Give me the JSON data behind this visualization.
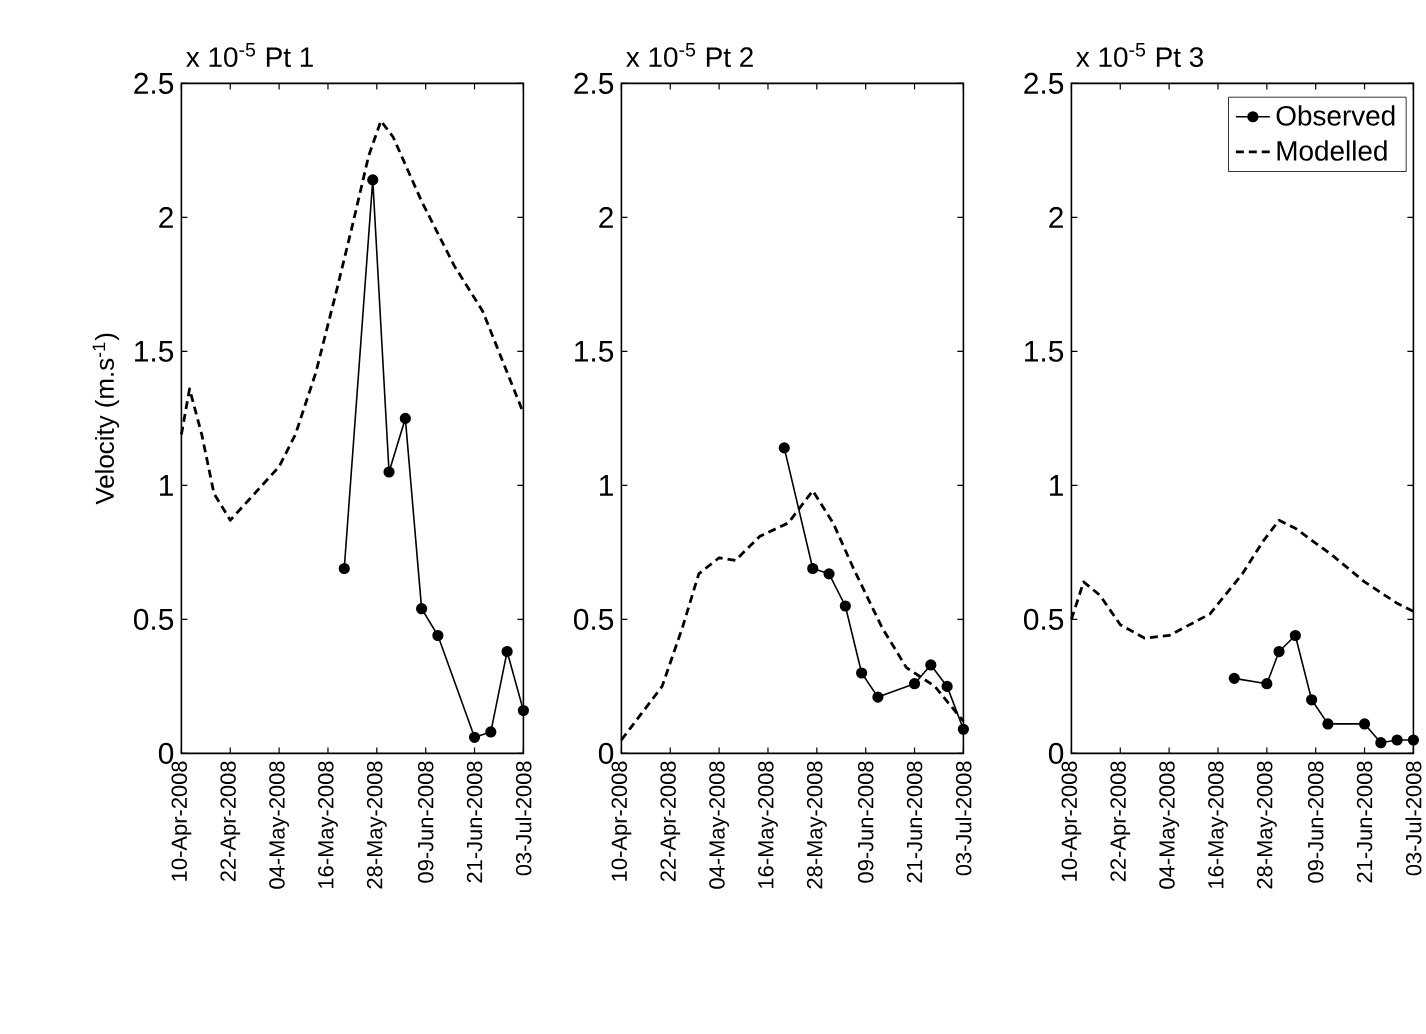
{
  "chart_data": [
    {
      "type": "line",
      "title": "x 10$^{-5}$ Pt 1",
      "ylabel": "Velocity (m.s$^{-1}$)",
      "xlim": [
        "2008-04-10",
        "2008-07-03"
      ],
      "ylim": [
        0,
        2.5
      ],
      "yticks": [
        0,
        0.5,
        1,
        1.5,
        2,
        2.5
      ],
      "xticks": [
        {
          "value": "2008-04-10",
          "label": "10-Apr-2008"
        },
        {
          "value": "2008-04-22",
          "label": "22-Apr-2008"
        },
        {
          "value": "2008-05-04",
          "label": "04-May-2008"
        },
        {
          "value": "2008-05-16",
          "label": "16-May-2008"
        },
        {
          "value": "2008-05-28",
          "label": "28-May-2008"
        },
        {
          "value": "2008-06-09",
          "label": "09-Jun-2008"
        },
        {
          "value": "2008-06-21",
          "label": "21-Jun-2008"
        },
        {
          "value": "2008-07-03",
          "label": "03-Jul-2008"
        }
      ],
      "legend": false,
      "series": [
        {
          "color": "#000000",
          "marker": "circle",
          "line_style": "solid",
          "x": [
            "2008-05-20",
            "2008-05-27",
            "2008-05-31",
            "2008-06-04",
            "2008-06-08",
            "2008-06-12",
            "2008-06-21",
            "2008-06-25",
            "2008-06-29",
            "2008-07-03"
          ],
          "values": [
            0.69,
            2.14,
            1.05,
            1.25,
            0.54,
            0.44,
            0.06,
            0.08,
            0.38,
            0.16
          ]
        },
        {
          "color": "#000000",
          "marker": "none",
          "line_style": "dashed",
          "x": [
            "2008-04-10",
            "2008-04-12",
            "2008-04-15",
            "2008-04-18",
            "2008-04-22",
            "2008-04-28",
            "2008-05-04",
            "2008-05-08",
            "2008-05-13",
            "2008-05-18",
            "2008-05-22",
            "2008-05-26",
            "2008-05-29",
            "2008-06-01",
            "2008-06-08",
            "2008-06-16",
            "2008-06-23",
            "2008-07-03"
          ],
          "values": [
            1.19,
            1.36,
            1.19,
            0.97,
            0.87,
            0.97,
            1.07,
            1.19,
            1.42,
            1.72,
            1.97,
            2.23,
            2.36,
            2.3,
            2.06,
            1.82,
            1.65,
            1.27
          ]
        }
      ]
    },
    {
      "type": "line",
      "title": "x 10$^{-5}$ Pt 2",
      "xlim": [
        "2008-04-10",
        "2008-07-03"
      ],
      "ylim": [
        0,
        2.5
      ],
      "yticks": [
        0,
        0.5,
        1,
        1.5,
        2,
        2.5
      ],
      "xticks": [
        {
          "value": "2008-04-10",
          "label": "10-Apr-2008"
        },
        {
          "value": "2008-04-22",
          "label": "22-Apr-2008"
        },
        {
          "value": "2008-05-04",
          "label": "04-May-2008"
        },
        {
          "value": "2008-05-16",
          "label": "16-May-2008"
        },
        {
          "value": "2008-05-28",
          "label": "28-May-2008"
        },
        {
          "value": "2008-06-09",
          "label": "09-Jun-2008"
        },
        {
          "value": "2008-06-21",
          "label": "21-Jun-2008"
        },
        {
          "value": "2008-07-03",
          "label": "03-Jul-2008"
        }
      ],
      "legend": false,
      "series": [
        {
          "color": "#000000",
          "marker": "circle",
          "line_style": "solid",
          "x": [
            "2008-05-20",
            "2008-05-27",
            "2008-05-31",
            "2008-06-04",
            "2008-06-08",
            "2008-06-12",
            "2008-06-21",
            "2008-06-25",
            "2008-06-29",
            "2008-07-03"
          ],
          "values": [
            1.14,
            0.69,
            0.67,
            0.55,
            0.3,
            0.21,
            0.26,
            0.33,
            0.25,
            0.09
          ]
        },
        {
          "color": "#000000",
          "marker": "none",
          "line_style": "dashed",
          "x": [
            "2008-04-10",
            "2008-04-15",
            "2008-04-20",
            "2008-04-25",
            "2008-04-29",
            "2008-05-04",
            "2008-05-08",
            "2008-05-14",
            "2008-05-21",
            "2008-05-27",
            "2008-06-01",
            "2008-06-06",
            "2008-06-13",
            "2008-06-19",
            "2008-06-26",
            "2008-07-03"
          ],
          "values": [
            0.05,
            0.15,
            0.25,
            0.47,
            0.67,
            0.73,
            0.72,
            0.81,
            0.86,
            0.98,
            0.86,
            0.69,
            0.47,
            0.32,
            0.25,
            0.12
          ]
        }
      ]
    },
    {
      "type": "line",
      "title": "x 10$^{-5}$ Pt 3",
      "xlim": [
        "2008-04-10",
        "2008-07-03"
      ],
      "ylim": [
        0,
        2.5
      ],
      "yticks": [
        0,
        0.5,
        1,
        1.5,
        2,
        2.5
      ],
      "xticks": [
        {
          "value": "2008-04-10",
          "label": "10-Apr-2008"
        },
        {
          "value": "2008-04-22",
          "label": "22-Apr-2008"
        },
        {
          "value": "2008-05-04",
          "label": "04-May-2008"
        },
        {
          "value": "2008-05-16",
          "label": "16-May-2008"
        },
        {
          "value": "2008-05-28",
          "label": "28-May-2008"
        },
        {
          "value": "2008-06-09",
          "label": "09-Jun-2008"
        },
        {
          "value": "2008-06-21",
          "label": "21-Jun-2008"
        },
        {
          "value": "2008-07-03",
          "label": "03-Jul-2008"
        }
      ],
      "legend": "top right",
      "series": [
        {
          "name": "Observed",
          "color": "#000000",
          "marker": "circle",
          "line_style": "solid",
          "x": [
            "2008-05-20",
            "2008-05-28",
            "2008-05-31",
            "2008-06-04",
            "2008-06-08",
            "2008-06-12",
            "2008-06-21",
            "2008-06-25",
            "2008-06-29",
            "2008-07-03"
          ],
          "values": [
            0.28,
            0.26,
            0.38,
            0.44,
            0.2,
            0.11,
            0.11,
            0.04,
            0.05,
            0.05
          ]
        },
        {
          "name": "Modelled",
          "color": "#000000",
          "marker": "none",
          "line_style": "dashed",
          "x": [
            "2008-04-10",
            "2008-04-13",
            "2008-04-17",
            "2008-04-22",
            "2008-04-28",
            "2008-05-04",
            "2008-05-14",
            "2008-05-22",
            "2008-05-27",
            "2008-05-31",
            "2008-06-04",
            "2008-06-13",
            "2008-06-21",
            "2008-06-29",
            "2008-07-03"
          ],
          "values": [
            0.5,
            0.64,
            0.59,
            0.48,
            0.43,
            0.44,
            0.52,
            0.67,
            0.79,
            0.87,
            0.84,
            0.74,
            0.64,
            0.56,
            0.53
          ]
        }
      ]
    }
  ]
}
